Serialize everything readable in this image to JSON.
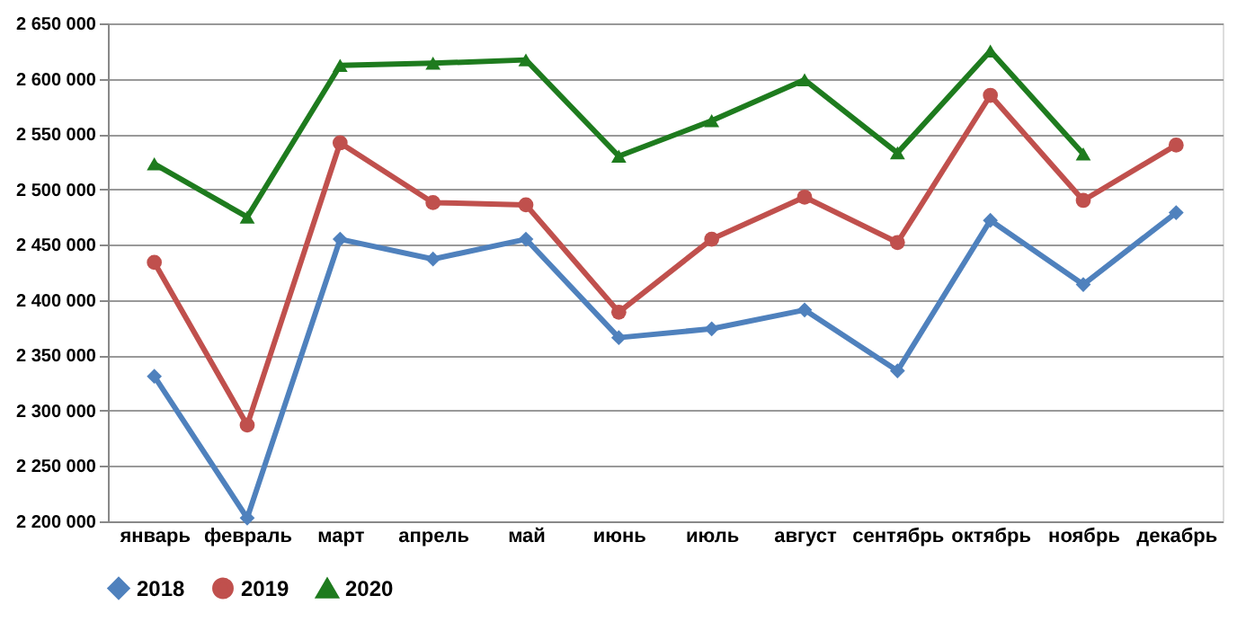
{
  "chart_data": {
    "type": "line",
    "categories": [
      "январь",
      "февраль",
      "март",
      "апрель",
      "май",
      "июнь",
      "июль",
      "август",
      "сентябрь",
      "октябрь",
      "ноябрь",
      "декабрь"
    ],
    "series": [
      {
        "name": "2018",
        "color": "#4f81bd",
        "marker": "diamond",
        "values": [
          2331000,
          2203000,
          2455000,
          2437000,
          2455000,
          2366000,
          2374000,
          2391000,
          2336000,
          2472000,
          2414000,
          2479000
        ]
      },
      {
        "name": "2019",
        "color": "#c0504d",
        "marker": "circle",
        "values": [
          2434000,
          2287000,
          2542000,
          2488000,
          2486000,
          2389000,
          2455000,
          2493000,
          2452000,
          2585000,
          2490000,
          2540000
        ]
      },
      {
        "name": "2020",
        "color": "#1e7b1e",
        "marker": "triangle",
        "values": [
          2523000,
          2475000,
          2612000,
          2614000,
          2617000,
          2530000,
          2562000,
          2599000,
          2533000,
          2625000,
          2532000,
          null
        ]
      }
    ],
    "ylim": [
      2200000,
      2650000
    ],
    "yticks": [
      {
        "value": 2200000,
        "label": "2 200 000"
      },
      {
        "value": 2250000,
        "label": "2 250 000"
      },
      {
        "value": 2300000,
        "label": "2 300 000"
      },
      {
        "value": 2350000,
        "label": "2 350 000"
      },
      {
        "value": 2400000,
        "label": "2 400 000"
      },
      {
        "value": 2450000,
        "label": "2 450 000"
      },
      {
        "value": 2500000,
        "label": "2 500 000"
      },
      {
        "value": 2550000,
        "label": "2 550 000"
      },
      {
        "value": 2600000,
        "label": "2 600 000"
      },
      {
        "value": 2650000,
        "label": "2 650 000"
      }
    ],
    "grid": "y",
    "legend": "bottom",
    "line_style": "solid"
  }
}
